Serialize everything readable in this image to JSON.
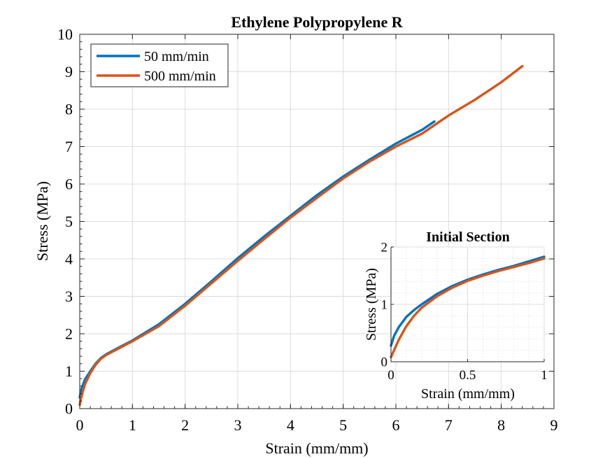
{
  "chart_data": [
    {
      "type": "line",
      "title": "Ethylene Polypropylene R",
      "xlabel": "Strain (mm/mm)",
      "ylabel": "Stress (MPa)",
      "xlim": [
        0,
        9
      ],
      "ylim": [
        0,
        10
      ],
      "xticks": [
        0,
        1,
        2,
        3,
        4,
        5,
        6,
        7,
        8,
        9
      ],
      "yticks": [
        0,
        1,
        2,
        3,
        4,
        5,
        6,
        7,
        8,
        9,
        10
      ],
      "grid": true,
      "legend_position": "top-left",
      "series": [
        {
          "name": "50 mm/min",
          "color": "#0072bd",
          "x": [
            0.0,
            0.02,
            0.05,
            0.1,
            0.2,
            0.3,
            0.4,
            0.5,
            0.7,
            1.0,
            1.5,
            2.0,
            2.5,
            3.0,
            3.5,
            4.0,
            4.5,
            5.0,
            5.5,
            6.0,
            6.5,
            6.73
          ],
          "y": [
            0.3,
            0.45,
            0.6,
            0.78,
            1.0,
            1.2,
            1.35,
            1.45,
            1.6,
            1.82,
            2.25,
            2.8,
            3.4,
            4.02,
            4.6,
            5.15,
            5.7,
            6.2,
            6.65,
            7.08,
            7.45,
            7.67
          ]
        },
        {
          "name": "500 mm/min",
          "color": "#d95319",
          "x": [
            0.0,
            0.02,
            0.05,
            0.1,
            0.2,
            0.3,
            0.4,
            0.5,
            0.7,
            1.0,
            1.5,
            2.0,
            2.5,
            3.0,
            3.5,
            4.0,
            4.5,
            5.0,
            5.5,
            6.0,
            6.5,
            7.0,
            7.5,
            8.0,
            8.4
          ],
          "y": [
            0.1,
            0.25,
            0.42,
            0.65,
            0.95,
            1.17,
            1.33,
            1.43,
            1.58,
            1.8,
            2.2,
            2.75,
            3.35,
            3.95,
            4.53,
            5.1,
            5.63,
            6.15,
            6.6,
            7.0,
            7.35,
            7.83,
            8.25,
            8.72,
            9.15
          ]
        }
      ]
    },
    {
      "type": "line",
      "title": "Initial Section",
      "xlabel": "Strain (mm/mm)",
      "ylabel": "Stress (MPa)",
      "xlim": [
        0,
        1
      ],
      "ylim": [
        0,
        2
      ],
      "xticks": [
        0,
        0.5,
        1
      ],
      "yticks": [
        0,
        1,
        2
      ],
      "grid": true,
      "series": [
        {
          "name": "50 mm/min",
          "color": "#0072bd",
          "x": [
            0.0,
            0.02,
            0.05,
            0.1,
            0.15,
            0.2,
            0.3,
            0.4,
            0.5,
            0.6,
            0.7,
            0.8,
            0.9,
            1.0
          ],
          "y": [
            0.28,
            0.45,
            0.6,
            0.78,
            0.9,
            1.0,
            1.18,
            1.32,
            1.43,
            1.52,
            1.6,
            1.67,
            1.75,
            1.83
          ]
        },
        {
          "name": "500 mm/min",
          "color": "#d95319",
          "x": [
            0.0,
            0.02,
            0.05,
            0.1,
            0.15,
            0.2,
            0.3,
            0.4,
            0.5,
            0.6,
            0.7,
            0.8,
            0.9,
            1.0
          ],
          "y": [
            0.08,
            0.2,
            0.38,
            0.62,
            0.8,
            0.94,
            1.14,
            1.29,
            1.41,
            1.5,
            1.58,
            1.65,
            1.72,
            1.8
          ]
        }
      ]
    }
  ]
}
